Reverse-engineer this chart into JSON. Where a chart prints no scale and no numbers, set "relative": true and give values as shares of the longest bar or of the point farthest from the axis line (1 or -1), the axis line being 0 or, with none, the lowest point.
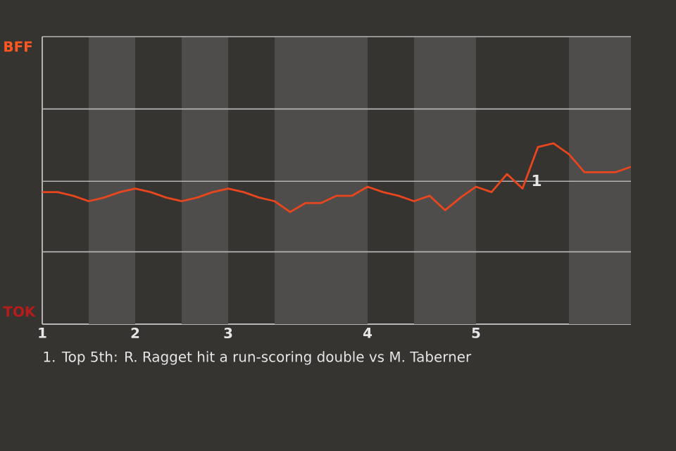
{
  "chart_data": {
    "type": "line",
    "relative": true,
    "categories": [
      "1",
      null,
      null,
      null,
      null,
      null,
      "2",
      null,
      null,
      null,
      null,
      null,
      "3",
      null,
      null,
      null,
      null,
      null,
      null,
      null,
      null,
      "4",
      null,
      null,
      null,
      null,
      null,
      null,
      "5",
      null,
      null,
      null,
      null,
      null,
      null,
      null,
      null,
      null,
      null
    ],
    "series": [
      {
        "color": "#e8461e",
        "values": [
          0.73,
          0.73,
          0.71,
          0.68,
          0.7,
          0.73,
          0.75,
          0.73,
          0.7,
          0.68,
          0.7,
          0.73,
          0.75,
          0.73,
          0.7,
          0.68,
          0.62,
          0.67,
          0.67,
          0.71,
          0.71,
          0.76,
          0.73,
          0.71,
          0.68,
          0.71,
          0.63,
          0.7,
          0.76,
          0.73,
          0.83,
          0.75,
          0.98,
          1,
          0.94,
          0.84,
          0.84,
          0.84,
          0.87
        ]
      }
    ],
    "line_style": "solid",
    "ref_lines": [
      {
        "axis": "y",
        "value": 0.4,
        "color": "#b4b4b4"
      },
      {
        "axis": "y",
        "value": 0.79,
        "color": "#b4b4b4"
      },
      {
        "axis": "y",
        "value": 1.19,
        "color": "#b4b4b4"
      }
    ],
    "annotations": [
      "BFF",
      "TOK",
      "1",
      "1. Top 5th: R. Ragget hit a run-scoring double vs M. Taberner"
    ]
  }
}
